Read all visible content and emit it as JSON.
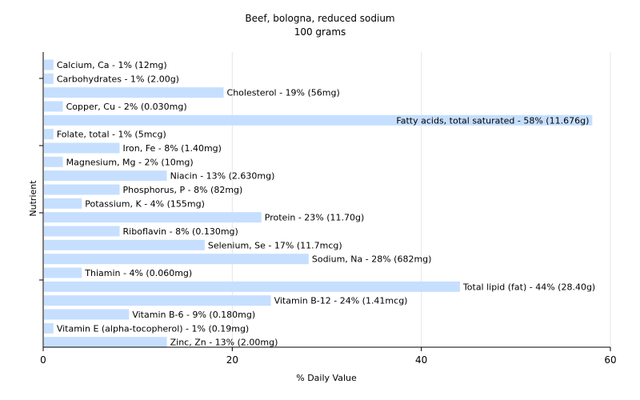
{
  "chart_data": {
    "type": "bar",
    "orientation": "horizontal",
    "title": "Beef, bologna, reduced sodium",
    "subtitle": "100 grams",
    "xlabel": "% Daily Value",
    "ylabel": "Nutrient",
    "xlim": [
      0,
      60
    ],
    "xticks": [
      "0",
      "20",
      "40",
      "60"
    ],
    "grid": "vertical",
    "bar_color": "#c6dfff",
    "bars": [
      {
        "name": "Calcium, Ca",
        "value": 1,
        "label": "Calcium, Ca - 1% (12mg)"
      },
      {
        "name": "Carbohydrates",
        "value": 1,
        "label": "Carbohydrates - 1% (2.00g)"
      },
      {
        "name": "Cholesterol",
        "value": 19,
        "label": "Cholesterol - 19% (56mg)"
      },
      {
        "name": "Copper, Cu",
        "value": 2,
        "label": "Copper, Cu - 2% (0.030mg)"
      },
      {
        "name": "Fatty acids, total saturated",
        "value": 58,
        "label": "Fatty acids, total saturated - 58% (11.676g)"
      },
      {
        "name": "Folate, total",
        "value": 1,
        "label": "Folate, total - 1% (5mcg)"
      },
      {
        "name": "Iron, Fe",
        "value": 8,
        "label": "Iron, Fe - 8% (1.40mg)"
      },
      {
        "name": "Magnesium, Mg",
        "value": 2,
        "label": "Magnesium, Mg - 2% (10mg)"
      },
      {
        "name": "Niacin",
        "value": 13,
        "label": "Niacin - 13% (2.630mg)"
      },
      {
        "name": "Phosphorus, P",
        "value": 8,
        "label": "Phosphorus, P - 8% (82mg)"
      },
      {
        "name": "Potassium, K",
        "value": 4,
        "label": "Potassium, K - 4% (155mg)"
      },
      {
        "name": "Protein",
        "value": 23,
        "label": "Protein - 23% (11.70g)"
      },
      {
        "name": "Riboflavin",
        "value": 8,
        "label": "Riboflavin - 8% (0.130mg)"
      },
      {
        "name": "Selenium, Se",
        "value": 17,
        "label": "Selenium, Se - 17% (11.7mcg)"
      },
      {
        "name": "Sodium, Na",
        "value": 28,
        "label": "Sodium, Na - 28% (682mg)"
      },
      {
        "name": "Thiamin",
        "value": 4,
        "label": "Thiamin - 4% (0.060mg)"
      },
      {
        "name": "Total lipid (fat)",
        "value": 44,
        "label": "Total lipid (fat) - 44% (28.40g)"
      },
      {
        "name": "Vitamin B-12",
        "value": 24,
        "label": "Vitamin B-12 - 24% (1.41mcg)"
      },
      {
        "name": "Vitamin B-6",
        "value": 9,
        "label": "Vitamin B-6 - 9% (0.180mg)"
      },
      {
        "name": "Vitamin E (alpha-tocopherol)",
        "value": 1,
        "label": "Vitamin E (alpha-tocopherol) - 1% (0.19mg)"
      },
      {
        "name": "Zinc, Zn",
        "value": 13,
        "label": "Zinc, Zn - 13% (2.00mg)"
      }
    ]
  }
}
